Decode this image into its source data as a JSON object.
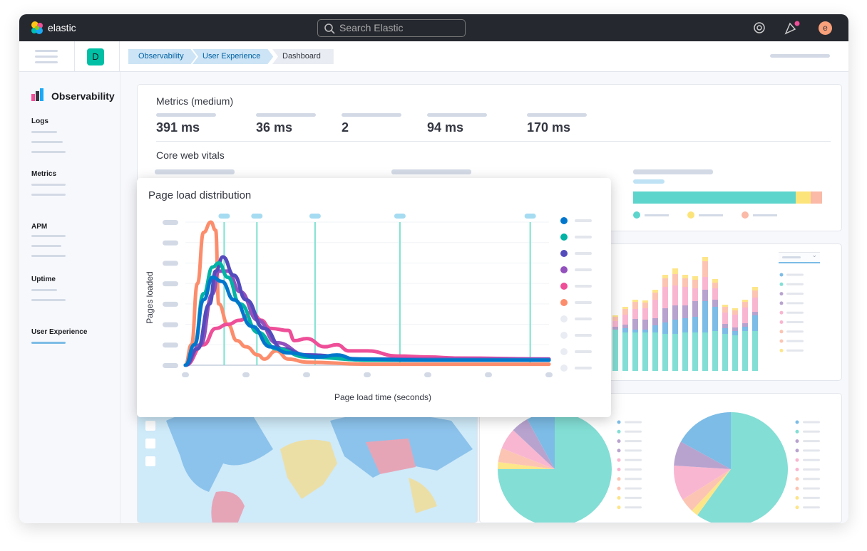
{
  "topbar": {
    "brand": "elastic",
    "search_placeholder": "Search Elastic",
    "avatar_letter": "e",
    "icons": [
      "help-icon",
      "newsfeed-icon"
    ]
  },
  "subbar": {
    "space_letter": "D",
    "breadcrumbs": [
      "Observability",
      "User Experience",
      "Dashboard"
    ]
  },
  "sidebar": {
    "title": "Observability",
    "sections": [
      {
        "label": "Logs"
      },
      {
        "label": "Metrics"
      },
      {
        "label": "APM"
      },
      {
        "label": "Uptime"
      },
      {
        "label": "User Experience",
        "active": true
      }
    ]
  },
  "metrics": {
    "title": "Metrics (medium)",
    "values": [
      "391 ms",
      "36 ms",
      "2",
      "94 ms",
      "170 ms"
    ],
    "core_title": "Core web vitals",
    "vital_bar": {
      "segments": [
        86,
        8,
        6
      ],
      "colors": [
        "#5dd5cc",
        "#fde47a",
        "#fbb9a8"
      ]
    }
  },
  "colors": {
    "accent": "#0077cc",
    "teal": "#54b399",
    "bar_teal": "#83ded5"
  },
  "chart_data": [
    {
      "type": "line",
      "title": "Page load distribution",
      "xlabel": "Page load time (seconds)",
      "ylabel": "Pages loaded",
      "xlim": [
        0,
        6
      ],
      "ylim": [
        0,
        7
      ],
      "grid": true,
      "legend": "right",
      "markers": [
        0.64,
        1.18,
        2.14,
        3.54,
        5.69
      ],
      "series": [
        {
          "color": "#fc8d6c",
          "points": [
            [
              0,
              0
            ],
            [
              0.1,
              1
            ],
            [
              0.2,
              4
            ],
            [
              0.3,
              6.5
            ],
            [
              0.42,
              7
            ],
            [
              0.5,
              6.6
            ],
            [
              0.55,
              3
            ],
            [
              0.7,
              2
            ],
            [
              0.85,
              1.2
            ],
            [
              1.0,
              0.9
            ],
            [
              1.2,
              0.5
            ],
            [
              1.3,
              0.3
            ],
            [
              1.5,
              0.7
            ],
            [
              1.7,
              0.3
            ],
            [
              2.0,
              0.15
            ],
            [
              3,
              0.05
            ],
            [
              6,
              0.05
            ]
          ]
        },
        {
          "color": "#ee4f98",
          "points": [
            [
              0,
              0
            ],
            [
              0.3,
              1
            ],
            [
              0.5,
              1.8
            ],
            [
              0.7,
              2
            ],
            [
              0.9,
              2.2
            ],
            [
              1.1,
              2.6
            ],
            [
              1.25,
              2.2
            ],
            [
              1.4,
              1.8
            ],
            [
              1.7,
              1.7
            ],
            [
              1.8,
              1.2
            ],
            [
              2.0,
              1.3
            ],
            [
              2.3,
              0.9
            ],
            [
              2.5,
              1.0
            ],
            [
              2.7,
              0.7
            ],
            [
              3.0,
              0.7
            ],
            [
              3.5,
              0.45
            ],
            [
              4.0,
              0.4
            ],
            [
              4.5,
              0.35
            ],
            [
              6,
              0.3
            ]
          ]
        },
        {
          "color": "#9251bd",
          "points": [
            [
              0,
              0
            ],
            [
              0.25,
              1
            ],
            [
              0.45,
              3.5
            ],
            [
              0.55,
              4.6
            ],
            [
              0.7,
              4.6
            ],
            [
              0.9,
              3.6
            ],
            [
              1.2,
              2.2
            ],
            [
              1.5,
              1.1
            ],
            [
              2,
              0.5
            ],
            [
              3,
              0.3
            ],
            [
              6,
              0.3
            ]
          ]
        },
        {
          "color": "#544bbd",
          "points": [
            [
              0,
              0
            ],
            [
              0.2,
              0.8
            ],
            [
              0.4,
              3
            ],
            [
              0.5,
              4.6
            ],
            [
              0.62,
              5.3
            ],
            [
              0.8,
              4.4
            ],
            [
              1.0,
              3.2
            ],
            [
              1.3,
              1.8
            ],
            [
              1.6,
              0.8
            ],
            [
              2,
              0.5
            ],
            [
              3,
              0.25
            ],
            [
              6,
              0.25
            ]
          ]
        },
        {
          "color": "#00b3a4",
          "points": [
            [
              0,
              0
            ],
            [
              0.15,
              1
            ],
            [
              0.3,
              3.5
            ],
            [
              0.45,
              4.8
            ],
            [
              0.55,
              5
            ],
            [
              0.7,
              4.3
            ],
            [
              0.9,
              3
            ],
            [
              1.2,
              1.6
            ],
            [
              1.5,
              0.8
            ],
            [
              2,
              0.4
            ],
            [
              3,
              0.25
            ],
            [
              6,
              0.25
            ]
          ]
        },
        {
          "color": "#0077cc",
          "points": [
            [
              0,
              0
            ],
            [
              0.15,
              1
            ],
            [
              0.3,
              3.2
            ],
            [
              0.45,
              4.3
            ],
            [
              0.6,
              4.1
            ],
            [
              0.8,
              3.2
            ],
            [
              1.1,
              1.9
            ],
            [
              1.4,
              0.9
            ],
            [
              1.7,
              0.6
            ],
            [
              2.2,
              0.4
            ],
            [
              2.5,
              0.5
            ],
            [
              2.8,
              0.3
            ],
            [
              4,
              0.25
            ],
            [
              6,
              0.25
            ]
          ]
        }
      ],
      "legend_colors": [
        "#0077cc",
        "#00b3a4",
        "#544bbd",
        "#9251bd",
        "#ee4f98",
        "#fc8d6c",
        "#e9ecf2",
        "#e9ecf2",
        "#e9ecf2",
        "#e9ecf2"
      ]
    },
    {
      "type": "bar",
      "stacked": true,
      "colors": [
        "#83ded5",
        "#7cbce6",
        "#b8a3cf",
        "#f9b6d0",
        "#fcc5b3",
        "#fde58a"
      ],
      "stacks": [
        [
          58,
          0,
          4,
          8,
          6,
          2
        ],
        [
          54,
          6,
          5,
          14,
          8,
          3
        ],
        [
          54,
          4,
          15,
          14,
          10,
          3
        ],
        [
          54,
          4,
          14,
          16,
          8,
          3
        ],
        [
          54,
          10,
          10,
          26,
          10,
          4
        ],
        [
          52,
          16,
          20,
          30,
          12,
          5
        ],
        [
          52,
          20,
          20,
          28,
          16,
          8
        ],
        [
          54,
          20,
          18,
          26,
          12,
          5
        ],
        [
          54,
          22,
          22,
          18,
          12,
          5
        ],
        [
          54,
          44,
          16,
          18,
          22,
          6
        ],
        [
          56,
          34,
          10,
          16,
          8,
          5
        ],
        [
          52,
          8,
          6,
          16,
          8,
          3
        ],
        [
          50,
          6,
          5,
          18,
          6,
          3
        ],
        [
          56,
          6,
          5,
          22,
          8,
          3
        ],
        [
          56,
          22,
          5,
          20,
          10,
          5
        ]
      ]
    },
    {
      "type": "pie",
      "colors": [
        "#83ded5",
        "#fde58a",
        "#fcc5b3",
        "#f9b6d0",
        "#b8a3cf",
        "#7cbce6"
      ],
      "values": [
        75,
        2,
        4,
        6,
        5,
        8
      ]
    },
    {
      "type": "pie",
      "colors": [
        "#83ded5",
        "#fde58a",
        "#fcc5b3",
        "#f9b6d0",
        "#b8a3cf",
        "#7cbce6"
      ],
      "values": [
        60,
        2,
        4,
        10,
        7,
        17
      ]
    }
  ]
}
